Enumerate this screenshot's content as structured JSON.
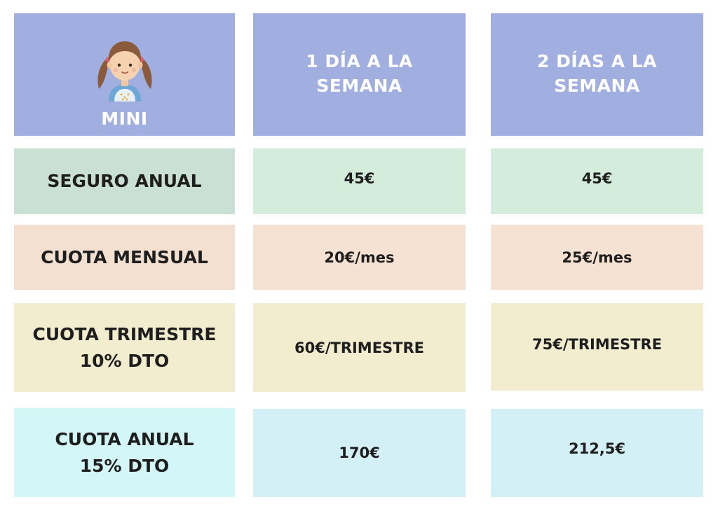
{
  "header": {
    "mini_label": "MINI",
    "col1": "1 DÍA A LA\nSEMANA",
    "col2": "2 DÍAS A LA\nSEMANA",
    "icon": "girl-avatar-icon"
  },
  "rows": [
    {
      "label": "SEGURO ANUAL",
      "col1": "45€",
      "col2": "45€"
    },
    {
      "label": "CUOTA MENSUAL",
      "col1": "20€/mes",
      "col2": "25€/mes"
    },
    {
      "label": "CUOTA TRIMESTRE\n10% DTO",
      "col1": "60€/TRIMESTRE",
      "col2": "75€/TRIMESTRE"
    },
    {
      "label": "CUOTA ANUAL\n15% DTO",
      "col1": "170€",
      "col2": "212,5€"
    }
  ],
  "colors": {
    "header_bg": "#a1aee0",
    "seguro_bg": "#d4ecdb",
    "mensual_bg": "#f6e2d2",
    "trimestre_bg": "#f2edce",
    "anual_bg": "#d3f0f6"
  }
}
